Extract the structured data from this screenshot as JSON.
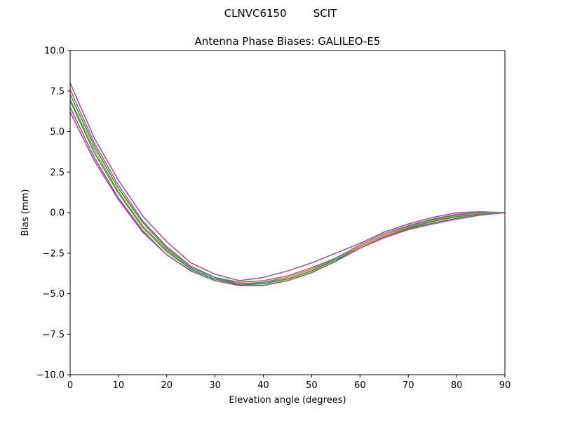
{
  "figure": {
    "suptitle": "CLNVC6150        SCIT"
  },
  "chart_data": {
    "type": "line",
    "title": "Antenna Phase Biases: GALILEO-E5",
    "xlabel": "Elevation angle (degrees)",
    "ylabel": "Bias (mm)",
    "xlim": [
      0,
      90
    ],
    "ylim": [
      -10,
      10
    ],
    "xticks": [
      0,
      10,
      20,
      30,
      40,
      50,
      60,
      70,
      80,
      90
    ],
    "xtick_labels": [
      "0",
      "10",
      "20",
      "30",
      "40",
      "50",
      "60",
      "70",
      "80",
      "90"
    ],
    "yticks": [
      -10,
      -7.5,
      -5,
      -2.5,
      0,
      2.5,
      5,
      7.5,
      10
    ],
    "ytick_labels": [
      "−10.0",
      "−7.5",
      "−5.0",
      "−2.5",
      "0.0",
      "2.5",
      "5.0",
      "7.5",
      "10.0"
    ],
    "grid": false,
    "legend": false,
    "x": [
      0,
      5,
      10,
      15,
      20,
      25,
      30,
      35,
      40,
      45,
      50,
      55,
      60,
      65,
      70,
      75,
      80,
      85,
      90
    ],
    "series": [
      {
        "color": "#9b59a6",
        "values": [
          8.0,
          4.6,
          2.0,
          -0.2,
          -1.8,
          -3.1,
          -3.8,
          -4.2,
          -4.0,
          -3.6,
          -3.1,
          -2.5,
          -1.9,
          -1.2,
          -0.7,
          -0.3,
          0.0,
          0.05,
          0.0
        ]
      },
      {
        "color": "#c0607a",
        "values": [
          7.6,
          4.3,
          1.7,
          -0.5,
          -2.1,
          -3.3,
          -4.0,
          -4.3,
          -4.2,
          -3.9,
          -3.4,
          -2.8,
          -2.0,
          -1.3,
          -0.8,
          -0.4,
          -0.1,
          0.0,
          0.0
        ]
      },
      {
        "color": "#2f8f8f",
        "values": [
          7.3,
          4.1,
          1.5,
          -0.6,
          -2.2,
          -3.4,
          -4.0,
          -4.4,
          -4.3,
          -4.0,
          -3.5,
          -2.8,
          -2.1,
          -1.4,
          -0.85,
          -0.45,
          -0.15,
          0.0,
          0.0
        ]
      },
      {
        "color": "#c8a030",
        "values": [
          7.0,
          3.9,
          1.3,
          -0.8,
          -2.3,
          -3.5,
          -4.1,
          -4.4,
          -4.4,
          -4.0,
          -3.5,
          -2.9,
          -2.1,
          -1.4,
          -0.9,
          -0.5,
          -0.2,
          -0.05,
          0.0
        ]
      },
      {
        "color": "#2ca02c",
        "values": [
          6.9,
          3.7,
          1.2,
          -0.9,
          -2.4,
          -3.5,
          -4.1,
          -4.4,
          -4.4,
          -4.1,
          -3.6,
          -2.9,
          -2.2,
          -1.5,
          -0.95,
          -0.55,
          -0.25,
          -0.1,
          0.0
        ]
      },
      {
        "color": "#8a5a9a",
        "values": [
          6.5,
          3.4,
          0.9,
          -1.1,
          -2.6,
          -3.6,
          -4.2,
          -4.45,
          -4.5,
          -4.2,
          -3.7,
          -3.0,
          -2.2,
          -1.5,
          -1.0,
          -0.65,
          -0.35,
          -0.15,
          0.0
        ]
      },
      {
        "color": "#b0509a",
        "values": [
          6.2,
          3.2,
          0.8,
          -1.2,
          -2.6,
          -3.6,
          -4.2,
          -4.5,
          -4.5,
          -4.2,
          -3.7,
          -3.0,
          -2.2,
          -1.55,
          -1.05,
          -0.7,
          -0.4,
          -0.15,
          0.0
        ]
      }
    ]
  }
}
